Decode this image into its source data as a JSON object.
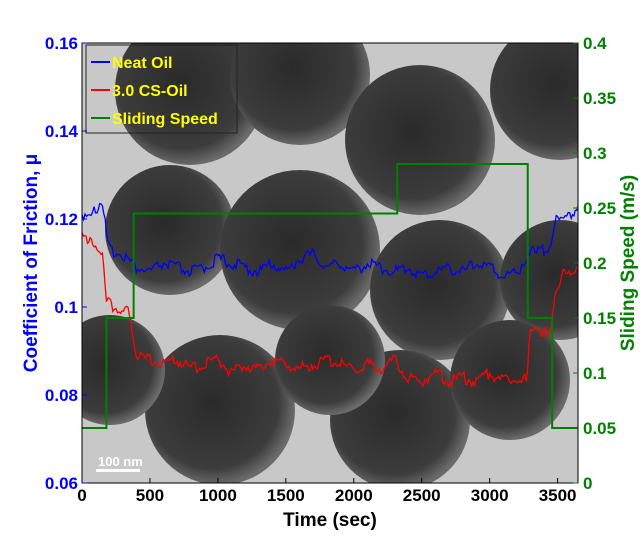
{
  "chart_data": {
    "type": "line",
    "xlabel": "Time (sec)",
    "ylabel": "Coefficient of Friction, μ",
    "y2label": "Sliding Speed (m/s)",
    "xlim": [
      0,
      3650
    ],
    "ylim": [
      0.06,
      0.16
    ],
    "y2lim": [
      0,
      0.4
    ],
    "x_ticks": [
      "0",
      "500",
      "1000",
      "1500",
      "2000",
      "2500",
      "3000",
      "3500"
    ],
    "y_ticks": [
      "0.06",
      "0.08",
      "0.1",
      "0.12",
      "0.14",
      "0.16"
    ],
    "y2_ticks": [
      "0",
      "0.05",
      "0.1",
      "0.15",
      "0.2",
      "0.25",
      "0.3",
      "0.35",
      "0.4"
    ],
    "legend_placement": "top-left",
    "background_image_annotation": "100 nm",
    "series": [
      {
        "name": "Neat Oil",
        "color": "#0000ff",
        "axis": "left",
        "x": [
          0,
          100,
          150,
          200,
          300,
          400,
          500,
          600,
          700,
          800,
          900,
          1000,
          1100,
          1200,
          1300,
          1400,
          1500,
          1600,
          1700,
          1800,
          1900,
          2000,
          2100,
          2200,
          2300,
          2400,
          2500,
          2600,
          2700,
          2800,
          2900,
          3000,
          3100,
          3200,
          3270,
          3300,
          3400,
          3450,
          3500,
          3600,
          3650
        ],
        "y": [
          0.121,
          0.122,
          0.123,
          0.113,
          0.112,
          0.109,
          0.108,
          0.11,
          0.109,
          0.108,
          0.109,
          0.111,
          0.11,
          0.109,
          0.108,
          0.11,
          0.108,
          0.111,
          0.112,
          0.109,
          0.11,
          0.108,
          0.11,
          0.109,
          0.108,
          0.109,
          0.107,
          0.108,
          0.109,
          0.108,
          0.11,
          0.109,
          0.107,
          0.108,
          0.109,
          0.114,
          0.113,
          0.114,
          0.121,
          0.121,
          0.123
        ]
      },
      {
        "name": "3.0 CS-Oil",
        "color": "#ff0000",
        "axis": "left",
        "x": [
          0,
          50,
          100,
          150,
          180,
          250,
          350,
          400,
          500,
          600,
          700,
          800,
          900,
          1000,
          1100,
          1200,
          1300,
          1400,
          1500,
          1600,
          1700,
          1800,
          1900,
          2000,
          2100,
          2200,
          2300,
          2400,
          2500,
          2600,
          2700,
          2800,
          2900,
          3000,
          3100,
          3200,
          3270,
          3300,
          3400,
          3450,
          3480,
          3550,
          3650
        ],
        "y": [
          0.118,
          0.115,
          0.113,
          0.112,
          0.101,
          0.1,
          0.099,
          0.089,
          0.088,
          0.087,
          0.088,
          0.086,
          0.087,
          0.088,
          0.085,
          0.087,
          0.086,
          0.088,
          0.087,
          0.086,
          0.087,
          0.088,
          0.087,
          0.086,
          0.087,
          0.086,
          0.088,
          0.084,
          0.083,
          0.085,
          0.083,
          0.084,
          0.083,
          0.085,
          0.083,
          0.084,
          0.084,
          0.094,
          0.094,
          0.095,
          0.104,
          0.108,
          0.109
        ]
      },
      {
        "name": "Sliding Speed",
        "color": "#008000",
        "axis": "right",
        "x": [
          0,
          180,
          180,
          380,
          380,
          2320,
          2320,
          3280,
          3280,
          3460,
          3460,
          3650
        ],
        "y": [
          0.05,
          0.05,
          0.15,
          0.15,
          0.245,
          0.245,
          0.29,
          0.29,
          0.15,
          0.15,
          0.05,
          0.05
        ]
      }
    ]
  }
}
